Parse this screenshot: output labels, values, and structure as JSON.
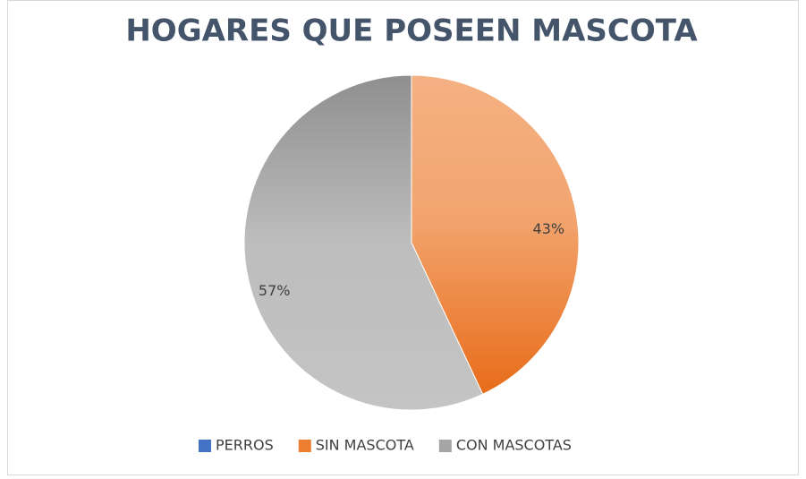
{
  "chart_data": {
    "type": "pie",
    "title": "HOGARES QUE POSEEN MASCOTA",
    "categories": [
      "PERROS",
      "SIN MASCOTA",
      "CON MASCOTAS"
    ],
    "values": [
      0,
      43,
      57
    ],
    "value_labels": [
      null,
      "43%",
      "57%"
    ],
    "colors": [
      "#4472c4",
      "#ed7d31",
      "#a5a5a5"
    ],
    "legend": "bottom"
  }
}
